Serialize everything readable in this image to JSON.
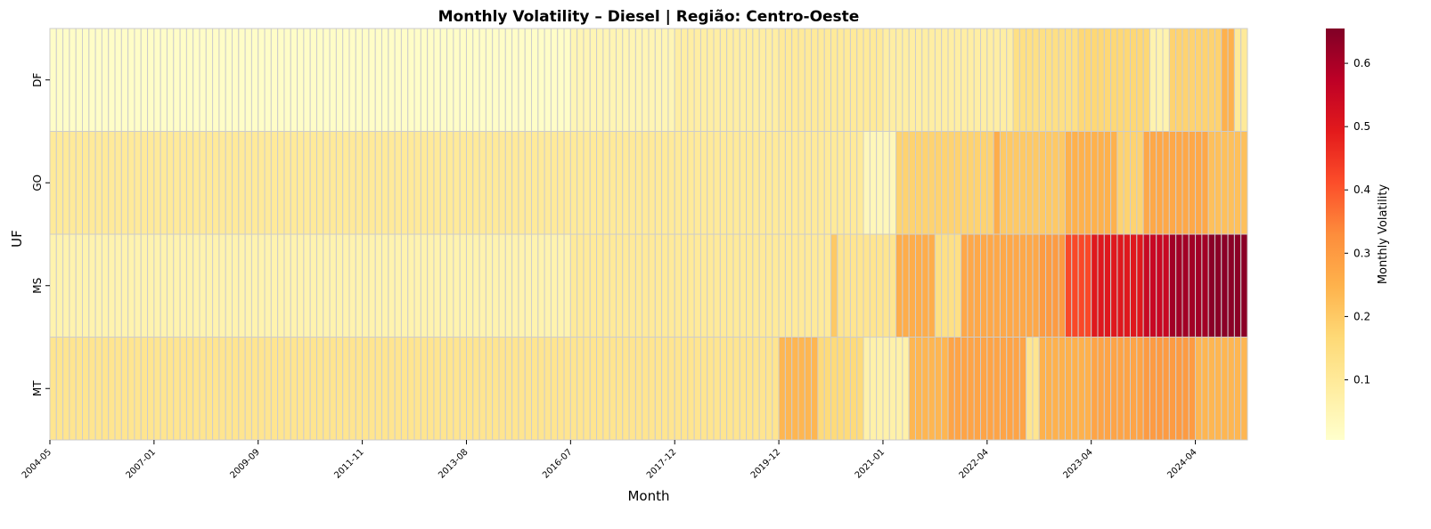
{
  "chart_data": {
    "type": "heatmap",
    "title": "Monthly Volatility – Diesel | Região: Centro-Oeste",
    "xlabel": "Month",
    "ylabel": "UF",
    "rows": [
      "DF",
      "GO",
      "MS",
      "MT"
    ],
    "x_tick_labels": [
      "2004-05",
      "2007-01",
      "2009-09",
      "2011-11",
      "2013-08",
      "2016-07",
      "2017-12",
      "2019-12",
      "2021-01",
      "2022-04",
      "2023-04",
      "2024-04"
    ],
    "column_count": 184,
    "colorbar": {
      "label": "Monthly Volatility",
      "min": 0.005,
      "max": 0.655,
      "ticks": [
        0.1,
        0.2,
        0.3,
        0.4,
        0.5,
        0.6
      ],
      "colormap": [
        "#ffffcc",
        "#ffeda0",
        "#fed976",
        "#feb24c",
        "#fd8d3c",
        "#fc4e2a",
        "#e31a1c",
        "#bd0026",
        "#800026"
      ]
    },
    "grid_color": "#cccccc",
    "value_segments": [
      {
        "row": "DF",
        "from": 0,
        "to": 80,
        "value": 0.015
      },
      {
        "row": "DF",
        "from": 80,
        "to": 96,
        "value": 0.05
      },
      {
        "row": "DF",
        "from": 96,
        "to": 112,
        "value": 0.08
      },
      {
        "row": "DF",
        "from": 112,
        "to": 128,
        "value": 0.1
      },
      {
        "row": "DF",
        "from": 128,
        "to": 148,
        "value": 0.08
      },
      {
        "row": "DF",
        "from": 148,
        "to": 158,
        "value": 0.14
      },
      {
        "row": "DF",
        "from": 158,
        "to": 169,
        "value": 0.17
      },
      {
        "row": "DF",
        "from": 169,
        "to": 172,
        "value": 0.06
      },
      {
        "row": "DF",
        "from": 172,
        "to": 180,
        "value": 0.18
      },
      {
        "row": "DF",
        "from": 180,
        "to": 182,
        "value": 0.25
      },
      {
        "row": "DF",
        "from": 182,
        "to": 184,
        "value": 0.1
      },
      {
        "row": "GO",
        "from": 0,
        "to": 125,
        "value": 0.1
      },
      {
        "row": "GO",
        "from": 125,
        "to": 130,
        "value": 0.04
      },
      {
        "row": "GO",
        "from": 130,
        "to": 145,
        "value": 0.18
      },
      {
        "row": "GO",
        "from": 145,
        "to": 146,
        "value": 0.26
      },
      {
        "row": "GO",
        "from": 146,
        "to": 156,
        "value": 0.2
      },
      {
        "row": "GO",
        "from": 156,
        "to": 164,
        "value": 0.25
      },
      {
        "row": "GO",
        "from": 164,
        "to": 168,
        "value": 0.18
      },
      {
        "row": "GO",
        "from": 168,
        "to": 178,
        "value": 0.27
      },
      {
        "row": "GO",
        "from": 178,
        "to": 184,
        "value": 0.22
      },
      {
        "row": "MS",
        "from": 0,
        "to": 80,
        "value": 0.06
      },
      {
        "row": "MS",
        "from": 80,
        "to": 120,
        "value": 0.1
      },
      {
        "row": "MS",
        "from": 120,
        "to": 121,
        "value": 0.2
      },
      {
        "row": "MS",
        "from": 121,
        "to": 130,
        "value": 0.12
      },
      {
        "row": "MS",
        "from": 130,
        "to": 136,
        "value": 0.26
      },
      {
        "row": "MS",
        "from": 136,
        "to": 140,
        "value": 0.14
      },
      {
        "row": "MS",
        "from": 140,
        "to": 152,
        "value": 0.27
      },
      {
        "row": "MS",
        "from": 152,
        "to": 156,
        "value": 0.3
      },
      {
        "row": "MS",
        "from": 156,
        "to": 160,
        "value": 0.42
      },
      {
        "row": "MS",
        "from": 160,
        "to": 168,
        "value": 0.5
      },
      {
        "row": "MS",
        "from": 168,
        "to": 172,
        "value": 0.55
      },
      {
        "row": "MS",
        "from": 172,
        "to": 178,
        "value": 0.61
      },
      {
        "row": "MS",
        "from": 178,
        "to": 184,
        "value": 0.64
      },
      {
        "row": "MT",
        "from": 0,
        "to": 112,
        "value": 0.12
      },
      {
        "row": "MT",
        "from": 112,
        "to": 118,
        "value": 0.24
      },
      {
        "row": "MT",
        "from": 118,
        "to": 125,
        "value": 0.16
      },
      {
        "row": "MT",
        "from": 125,
        "to": 132,
        "value": 0.07
      },
      {
        "row": "MT",
        "from": 132,
        "to": 138,
        "value": 0.24
      },
      {
        "row": "MT",
        "from": 138,
        "to": 150,
        "value": 0.28
      },
      {
        "row": "MT",
        "from": 150,
        "to": 152,
        "value": 0.12
      },
      {
        "row": "MT",
        "from": 152,
        "to": 160,
        "value": 0.25
      },
      {
        "row": "MT",
        "from": 160,
        "to": 168,
        "value": 0.28
      },
      {
        "row": "MT",
        "from": 168,
        "to": 176,
        "value": 0.3
      },
      {
        "row": "MT",
        "from": 176,
        "to": 184,
        "value": 0.24
      }
    ]
  }
}
